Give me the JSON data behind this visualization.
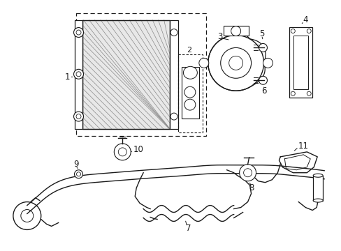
{
  "bg_color": "#ffffff",
  "line_color": "#1a1a1a",
  "fig_width": 4.89,
  "fig_height": 3.6,
  "dpi": 100,
  "gray_fill": "#e8e8e8",
  "light_gray": "#d0d0d0"
}
